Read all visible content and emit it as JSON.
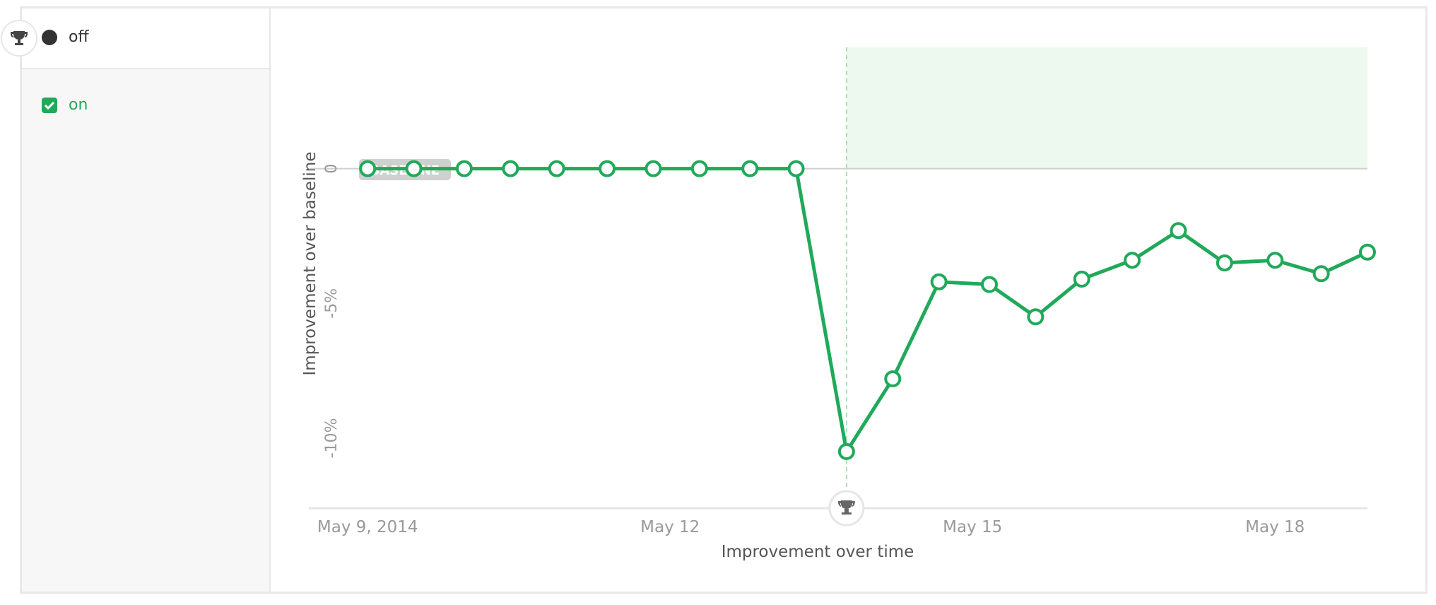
{
  "sidebar": {
    "items": [
      {
        "label": "off"
      },
      {
        "label": "on"
      }
    ]
  },
  "chart_data": {
    "type": "line",
    "x_label": "Improvement over time",
    "y_label": "Improvement over baseline",
    "baseline_label": "BASELINE",
    "x": [
      "2014-05-09T00:00",
      "2014-05-09T11:00",
      "2014-05-09T23:00",
      "2014-05-10T10:00",
      "2014-05-10T21:00",
      "2014-05-11T09:00",
      "2014-05-11T20:00",
      "2014-05-12T07:00",
      "2014-05-12T19:00",
      "2014-05-13T06:00",
      "2014-05-13T18:00",
      "2014-05-14T05:00",
      "2014-05-14T16:00",
      "2014-05-15T04:00",
      "2014-05-15T15:00",
      "2014-05-16T02:00",
      "2014-05-16T14:00",
      "2014-05-17T01:00",
      "2014-05-17T12:00",
      "2014-05-18T00:00",
      "2014-05-18T11:00",
      "2014-05-18T22:00"
    ],
    "series": [
      {
        "color": "#21a95a",
        "values": [
          0,
          0,
          0,
          0,
          0,
          0,
          0,
          0,
          0,
          0,
          -10.5,
          -7.8,
          -4.2,
          -4.3,
          -5.5,
          -4.1,
          -3.4,
          -2.3,
          -3.5,
          -3.4,
          -3.9,
          -3.1
        ]
      }
    ],
    "annotation_x": "2014-05-13T18:00",
    "xlim": [
      "2014-05-08T10:00",
      "2014-05-18T22:00"
    ],
    "xticks": [
      {
        "value": "2014-05-09T00:00",
        "label": "May 9, 2014"
      },
      {
        "value": "2014-05-12T00:00",
        "label": "May 12"
      },
      {
        "value": "2014-05-15T00:00",
        "label": "May 15"
      },
      {
        "value": "2014-05-18T00:00",
        "label": "May 18"
      }
    ],
    "ylim": [
      -12.6,
      4.5
    ],
    "yticks": [
      0,
      {
        "value": -5,
        "label": "-5%"
      },
      {
        "value": -10,
        "label": "-10%"
      }
    ]
  }
}
